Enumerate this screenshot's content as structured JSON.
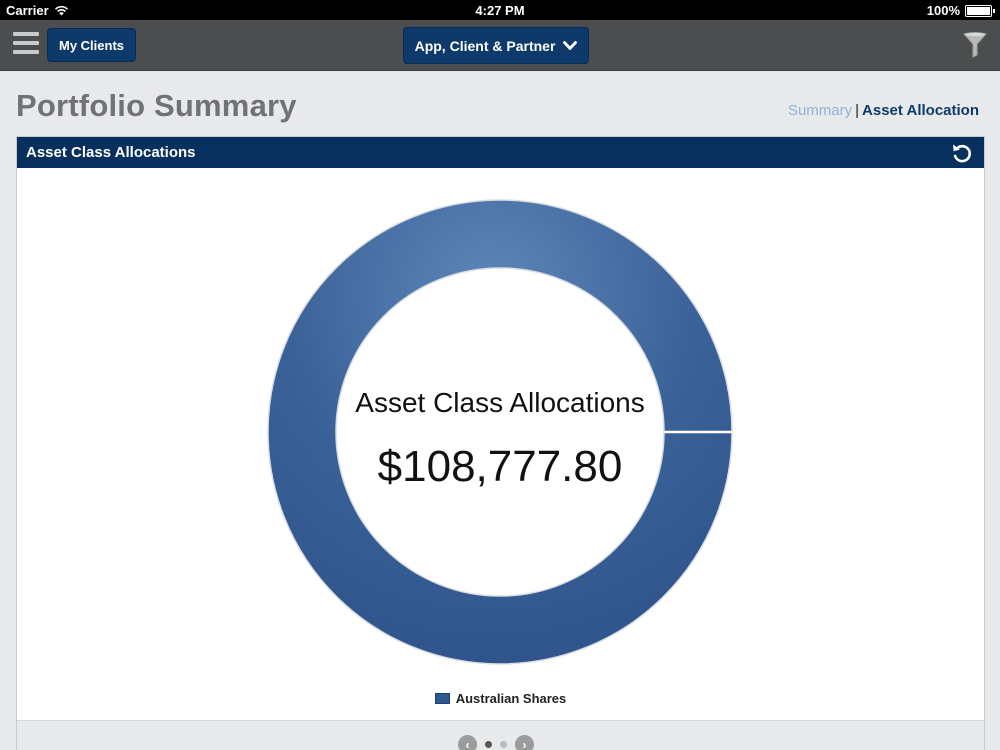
{
  "status_bar": {
    "carrier": "Carrier",
    "time": "4:27 PM",
    "battery": "100%",
    "battery_level": 1.0
  },
  "nav": {
    "my_clients_label": "My Clients",
    "dropdown_label": "App, Client & Partner"
  },
  "page": {
    "title": "Portfolio Summary"
  },
  "breadcrumb": {
    "summary": "Summary",
    "separator": "|",
    "active": "Asset Allocation"
  },
  "panel": {
    "title": "Asset Class Allocations"
  },
  "chart_data": {
    "type": "pie",
    "title": "Asset Class Allocations",
    "center_value": "$108,777.80",
    "series": [
      {
        "name": "Australian Shares",
        "values": [
          108777.8
        ]
      }
    ],
    "legend_placement": "bottom",
    "colors": [
      "#2f5890"
    ]
  },
  "pager": {
    "pages": 2,
    "current": 1
  },
  "icons": {
    "menu": "hamburger-icon",
    "dropdown": "chevron-down-icon",
    "filter": "filter-icon",
    "refresh": "refresh-icon",
    "prev": "chevron-left-icon",
    "next": "chevron-right-icon"
  }
}
